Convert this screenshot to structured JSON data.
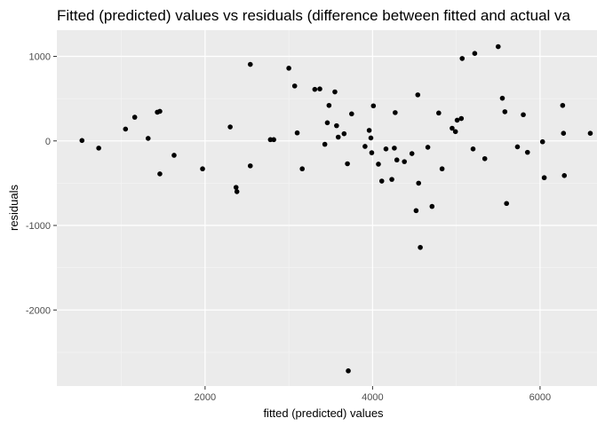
{
  "chart_data": {
    "type": "scatter",
    "title": "Fitted (predicted) values vs residuals (difference between fitted and actual va",
    "xlabel": "fitted (predicted) values",
    "ylabel": "residuals",
    "xlim": [
      230,
      6680
    ],
    "ylim": [
      -2900,
      1310
    ],
    "x_ticks": [
      2000,
      4000,
      6000
    ],
    "y_ticks": [
      1000,
      0,
      -1000,
      -2000
    ],
    "x_tick_labels": [
      "2000",
      "4000",
      "6000"
    ],
    "y_tick_labels": [
      "1000",
      "0",
      "-1000",
      "-2000"
    ],
    "grid": true,
    "legend": "none",
    "colors": {
      "panel_background": "#ebebeb",
      "grid_major": "#ffffff",
      "grid_minor": "#f5f5f5",
      "point": "#000000",
      "axis_text": "#4d4d4d",
      "title_text": "#000000"
    },
    "points": [
      {
        "x": 530,
        "y": 5
      },
      {
        "x": 730,
        "y": -85
      },
      {
        "x": 1050,
        "y": 140
      },
      {
        "x": 1160,
        "y": 280
      },
      {
        "x": 1320,
        "y": 30
      },
      {
        "x": 1430,
        "y": 340
      },
      {
        "x": 1460,
        "y": 350
      },
      {
        "x": 1460,
        "y": -390
      },
      {
        "x": 1630,
        "y": -170
      },
      {
        "x": 1970,
        "y": -330
      },
      {
        "x": 2300,
        "y": 165
      },
      {
        "x": 2370,
        "y": -550
      },
      {
        "x": 2380,
        "y": -600
      },
      {
        "x": 2540,
        "y": 905
      },
      {
        "x": 2540,
        "y": -295
      },
      {
        "x": 2780,
        "y": 15
      },
      {
        "x": 2820,
        "y": 15
      },
      {
        "x": 3000,
        "y": 860
      },
      {
        "x": 3070,
        "y": 650
      },
      {
        "x": 3100,
        "y": 95
      },
      {
        "x": 3160,
        "y": -330
      },
      {
        "x": 3310,
        "y": 610
      },
      {
        "x": 3370,
        "y": 615
      },
      {
        "x": 3430,
        "y": -40
      },
      {
        "x": 3460,
        "y": 215
      },
      {
        "x": 3480,
        "y": 420
      },
      {
        "x": 3550,
        "y": 580
      },
      {
        "x": 3570,
        "y": 180
      },
      {
        "x": 3590,
        "y": 45
      },
      {
        "x": 3660,
        "y": 85
      },
      {
        "x": 3700,
        "y": -270
      },
      {
        "x": 3710,
        "y": -2720
      },
      {
        "x": 3750,
        "y": 320
      },
      {
        "x": 3910,
        "y": -65
      },
      {
        "x": 3960,
        "y": 125
      },
      {
        "x": 3980,
        "y": 35
      },
      {
        "x": 3990,
        "y": -140
      },
      {
        "x": 4010,
        "y": 415
      },
      {
        "x": 4070,
        "y": -275
      },
      {
        "x": 4110,
        "y": -475
      },
      {
        "x": 4160,
        "y": -95
      },
      {
        "x": 4230,
        "y": -455
      },
      {
        "x": 4260,
        "y": -85
      },
      {
        "x": 4270,
        "y": 335
      },
      {
        "x": 4290,
        "y": -225
      },
      {
        "x": 4380,
        "y": -245
      },
      {
        "x": 4470,
        "y": -150
      },
      {
        "x": 4520,
        "y": -825
      },
      {
        "x": 4540,
        "y": 545
      },
      {
        "x": 4550,
        "y": -500
      },
      {
        "x": 4570,
        "y": -1260
      },
      {
        "x": 4660,
        "y": -75
      },
      {
        "x": 4710,
        "y": -775
      },
      {
        "x": 4790,
        "y": 330
      },
      {
        "x": 4830,
        "y": -330
      },
      {
        "x": 4950,
        "y": 150
      },
      {
        "x": 4990,
        "y": 110
      },
      {
        "x": 5010,
        "y": 245
      },
      {
        "x": 5060,
        "y": 265
      },
      {
        "x": 5070,
        "y": 975
      },
      {
        "x": 5200,
        "y": -95
      },
      {
        "x": 5220,
        "y": 1035
      },
      {
        "x": 5340,
        "y": -210
      },
      {
        "x": 5500,
        "y": 1115
      },
      {
        "x": 5550,
        "y": 505
      },
      {
        "x": 5580,
        "y": 345
      },
      {
        "x": 5600,
        "y": -740
      },
      {
        "x": 5730,
        "y": -70
      },
      {
        "x": 5800,
        "y": 310
      },
      {
        "x": 5850,
        "y": -135
      },
      {
        "x": 6030,
        "y": -10
      },
      {
        "x": 6050,
        "y": -435
      },
      {
        "x": 6270,
        "y": 420
      },
      {
        "x": 6280,
        "y": 90
      },
      {
        "x": 6290,
        "y": -410
      },
      {
        "x": 6600,
        "y": 90
      }
    ]
  }
}
